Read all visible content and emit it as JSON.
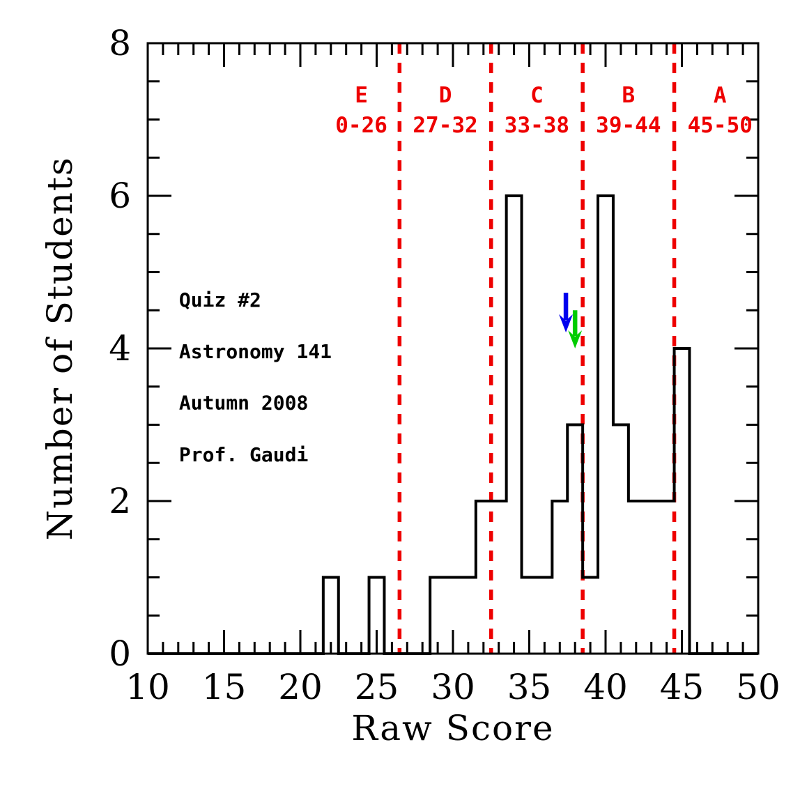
{
  "figure": {
    "background": "#ffffff",
    "frame_color": "#000000"
  },
  "chart_data": {
    "type": "bar",
    "title": "",
    "xlabel": "Raw Score",
    "ylabel": "Number of Students",
    "xlim": [
      10,
      50
    ],
    "ylim": [
      0,
      8
    ],
    "grid": false,
    "x_major_step": 5,
    "x_minor_step": 1,
    "x_major_tick_labels": [
      "10",
      "15",
      "20",
      "25",
      "30",
      "35",
      "40",
      "45",
      "50"
    ],
    "y_major_step": 2,
    "y_minor_step": 0.5,
    "y_major_tick_labels": [
      "0",
      "2",
      "4",
      "6",
      "8"
    ],
    "histogram": {
      "outline_color": "#000000",
      "bin_width": 1,
      "scores": [
        22,
        25,
        29,
        30,
        31,
        32,
        33,
        34,
        35,
        36,
        37,
        38,
        39,
        40,
        41,
        42,
        43,
        44,
        45
      ],
      "counts": [
        1,
        1,
        1,
        1,
        1,
        2,
        2,
        6,
        1,
        1,
        2,
        3,
        1,
        6,
        3,
        2,
        2,
        2,
        4
      ]
    },
    "grade_boundaries": {
      "color": "#ee0000",
      "style": "dashed",
      "values": [
        26.5,
        32.5,
        38.5,
        44.5
      ]
    },
    "grade_labels": [
      {
        "letter": "E",
        "range": "0-26",
        "x": 24.0
      },
      {
        "letter": "D",
        "range": "27-32",
        "x": 29.5
      },
      {
        "letter": "C",
        "range": "33-38",
        "x": 35.5
      },
      {
        "letter": "B",
        "range": "39-44",
        "x": 41.5
      },
      {
        "letter": "A",
        "range": "45-50",
        "x": 47.5
      }
    ],
    "arrows": [
      {
        "name": "blue-arrow",
        "color": "#0000ee",
        "x": 37.4,
        "y_tail": 4.73,
        "y_tip": 4.21
      },
      {
        "name": "green-arrow",
        "color": "#00cc00",
        "x": 38.0,
        "y_tail": 4.5,
        "y_tip": 4.0
      }
    ],
    "annotations": {
      "color": "#000000",
      "x": 12.05,
      "lines": [
        "Quiz #2",
        "Astronomy 141",
        "Autumn 2008",
        "Prof. Gaudi"
      ],
      "y": [
        4.55,
        3.87,
        3.2,
        2.52
      ]
    }
  }
}
